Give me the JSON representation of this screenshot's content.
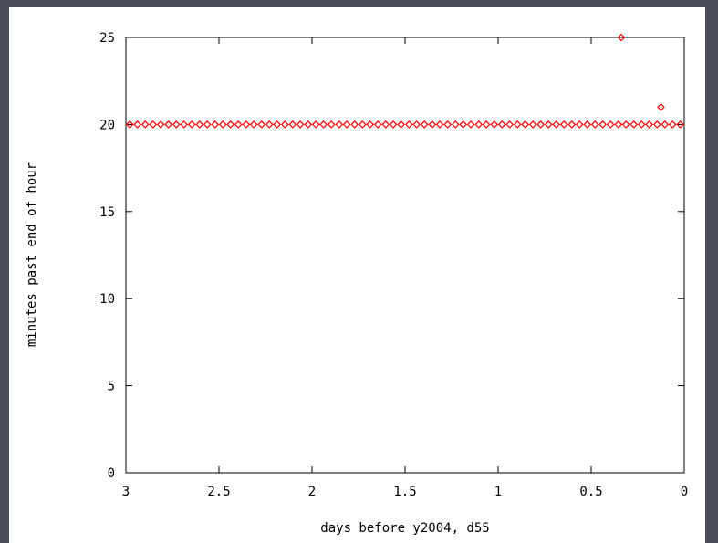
{
  "colors": {
    "background": "#4a4e58",
    "plot": "#ffffff",
    "axis": "#000000",
    "points": "#ff0000"
  },
  "chart_data": {
    "type": "scatter",
    "title": "",
    "xlabel": "days before y2004, d55",
    "ylabel": "minutes past end of hour",
    "xlim": [
      3,
      0
    ],
    "ylim": [
      0,
      25
    ],
    "x_reversed": true,
    "x_ticks": [
      "3",
      "2.5",
      "2",
      "1.5",
      "1",
      "0.5",
      "0"
    ],
    "x_tick_values": [
      3,
      2.5,
      2,
      1.5,
      1,
      0.5,
      0
    ],
    "y_ticks": [
      "0",
      "5",
      "10",
      "15",
      "20",
      "25"
    ],
    "y_tick_values": [
      0,
      5,
      10,
      15,
      20,
      25
    ],
    "grid": false,
    "marker": "diamond",
    "series": [
      {
        "points": [
          [
            2.979,
            20
          ],
          [
            2.938,
            20
          ],
          [
            2.896,
            20
          ],
          [
            2.854,
            20
          ],
          [
            2.813,
            20
          ],
          [
            2.771,
            20
          ],
          [
            2.729,
            20
          ],
          [
            2.688,
            20
          ],
          [
            2.646,
            20
          ],
          [
            2.604,
            20
          ],
          [
            2.563,
            20
          ],
          [
            2.521,
            20
          ],
          [
            2.479,
            20
          ],
          [
            2.438,
            20
          ],
          [
            2.396,
            20
          ],
          [
            2.354,
            20
          ],
          [
            2.313,
            20
          ],
          [
            2.271,
            20
          ],
          [
            2.229,
            20
          ],
          [
            2.188,
            20
          ],
          [
            2.146,
            20
          ],
          [
            2.104,
            20
          ],
          [
            2.063,
            20
          ],
          [
            2.021,
            20
          ],
          [
            1.979,
            20
          ],
          [
            1.938,
            20
          ],
          [
            1.896,
            20
          ],
          [
            1.854,
            20
          ],
          [
            1.813,
            20
          ],
          [
            1.771,
            20
          ],
          [
            1.729,
            20
          ],
          [
            1.688,
            20
          ],
          [
            1.646,
            20
          ],
          [
            1.604,
            20
          ],
          [
            1.563,
            20
          ],
          [
            1.521,
            20
          ],
          [
            1.479,
            20
          ],
          [
            1.438,
            20
          ],
          [
            1.396,
            20
          ],
          [
            1.354,
            20
          ],
          [
            1.313,
            20
          ],
          [
            1.271,
            20
          ],
          [
            1.229,
            20
          ],
          [
            1.188,
            20
          ],
          [
            1.146,
            20
          ],
          [
            1.104,
            20
          ],
          [
            1.063,
            20
          ],
          [
            1.021,
            20
          ],
          [
            0.979,
            20
          ],
          [
            0.938,
            20
          ],
          [
            0.896,
            20
          ],
          [
            0.854,
            20
          ],
          [
            0.813,
            20
          ],
          [
            0.771,
            20
          ],
          [
            0.729,
            20
          ],
          [
            0.688,
            20
          ],
          [
            0.646,
            20
          ],
          [
            0.604,
            20
          ],
          [
            0.563,
            20
          ],
          [
            0.521,
            20
          ],
          [
            0.479,
            20
          ],
          [
            0.438,
            20
          ],
          [
            0.396,
            20
          ],
          [
            0.354,
            20
          ],
          [
            0.338,
            25
          ],
          [
            0.313,
            20
          ],
          [
            0.271,
            20
          ],
          [
            0.229,
            20
          ],
          [
            0.188,
            20
          ],
          [
            0.146,
            20
          ],
          [
            0.125,
            21
          ],
          [
            0.104,
            20
          ],
          [
            0.063,
            20
          ],
          [
            0.021,
            20
          ]
        ]
      }
    ]
  }
}
